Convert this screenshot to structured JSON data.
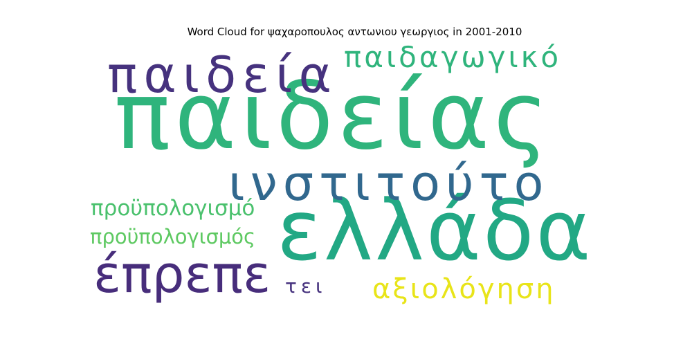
{
  "chart_data": {
    "type": "wordcloud",
    "title": "Word Cloud for ψαχαροπουλος αντωνιου γεωργιος in 2001-2010",
    "words": [
      {
        "text": "παιδείας",
        "weight": 1.0,
        "color": "#2fb47c"
      },
      {
        "text": "ελλάδα",
        "weight": 0.85,
        "color": "#22a884"
      },
      {
        "text": "ινστιτούτο",
        "weight": 0.6,
        "color": "#31688e"
      },
      {
        "text": "παιδεία",
        "weight": 0.55,
        "color": "#46327e"
      },
      {
        "text": "έπρεπε",
        "weight": 0.55,
        "color": "#472d7b"
      },
      {
        "text": "παιδαγωγικό",
        "weight": 0.4,
        "color": "#2fb47c"
      },
      {
        "text": "προϋπολογισμό",
        "weight": 0.35,
        "color": "#4ac16d"
      },
      {
        "text": "προϋπολογισμός",
        "weight": 0.33,
        "color": "#5ec962"
      },
      {
        "text": "αξιολόγηση",
        "weight": 0.4,
        "color": "#e8e419"
      },
      {
        "text": "τει",
        "weight": 0.28,
        "color": "#46327e"
      }
    ]
  }
}
